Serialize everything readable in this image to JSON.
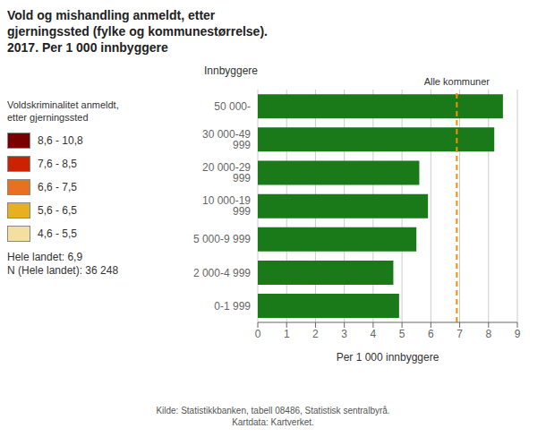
{
  "chart_data": {
    "type": "bar",
    "orientation": "horizontal",
    "title": "Vold og mishandling anmeldt, etter\ngjerningssted (fylke og kommunestørrelse).\n2017. Per 1 000 innbyggere",
    "categories": [
      "0-1 999",
      "2 000-4 999",
      "5 000-9 999",
      "10 000-19 999",
      "20 000-29 999",
      "30 000-49 999",
      "50 000-"
    ],
    "values": [
      4.9,
      4.7,
      5.5,
      5.9,
      5.6,
      8.2,
      8.5
    ],
    "color": "#1a7a1a",
    "xlabel": "Per 1 000 innbyggere",
    "ylabel": "Innbyggere",
    "xlim": [
      0,
      9
    ],
    "xticks": [
      0,
      1,
      2,
      3,
      4,
      5,
      6,
      7,
      8,
      9
    ],
    "grid": true,
    "reference_line": {
      "value": 6.9,
      "label": "Alle kommuner",
      "color": "#ff8c00",
      "line_style": "dashed"
    },
    "legend_title": "Voldskriminalitet anmeldt,\netter gjerningssted",
    "legend_items": [
      {
        "label": "8,6 - 10,8",
        "color": "#7a0000"
      },
      {
        "label": "7,6 - 8,5",
        "color": "#cc2200"
      },
      {
        "label": "6,6 - 7,5",
        "color": "#e87020"
      },
      {
        "label": "5,6 - 6,5",
        "color": "#e8b020"
      },
      {
        "label": "4,6 - 5,5",
        "color": "#f5dfa0"
      }
    ],
    "annotation": "Hele landet: 6,9\nN (Hele landet): 36 248",
    "source": "Kilde: Statistikkbanken, tabell 08486, Statistisk sentralbyrå.\nKartdata: Kartverket."
  }
}
